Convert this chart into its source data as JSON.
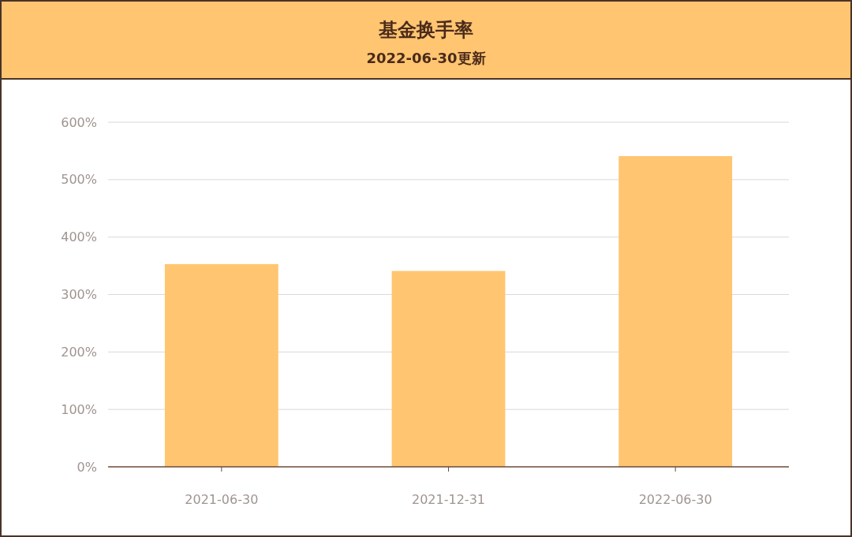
{
  "chart_data": {
    "type": "bar",
    "title": "基金换手率",
    "subtitle": "2022-06-30更新",
    "categories": [
      "2021-06-30",
      "2021-12-31",
      "2022-06-30"
    ],
    "values": [
      353,
      341,
      541
    ],
    "color": "#ffc571",
    "ylim": [
      0,
      600
    ],
    "yticks": [
      {
        "value": 0,
        "label": "0%"
      },
      {
        "value": 100,
        "label": "100%"
      },
      {
        "value": 200,
        "label": "200%"
      },
      {
        "value": 300,
        "label": "300%"
      },
      {
        "value": 400,
        "label": "400%"
      },
      {
        "value": 500,
        "label": "500%"
      },
      {
        "value": 600,
        "label": "600%"
      }
    ],
    "grid": "y"
  }
}
